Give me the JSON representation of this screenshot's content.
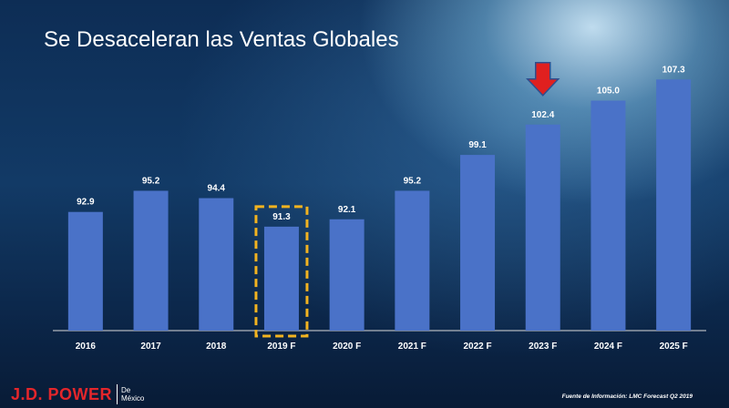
{
  "slide": {
    "title": "Se Desaceleran las Ventas Globales"
  },
  "chart_data": {
    "type": "bar",
    "title": "Se Desaceleran las Ventas Globales",
    "xlabel": "",
    "ylabel": "",
    "categories": [
      "2016",
      "2017",
      "2018",
      "2019 F",
      "2020 F",
      "2021 F",
      "2022 F",
      "2023 F",
      "2024 F",
      "2025 F"
    ],
    "values": [
      92.9,
      95.2,
      94.4,
      91.3,
      92.1,
      95.2,
      99.1,
      102.4,
      105.0,
      107.3
    ],
    "value_labels": [
      "92.9",
      "95.2",
      "94.4",
      "91.3",
      "92.1",
      "95.2",
      "99.1",
      "102.4",
      "105.0",
      "107.3"
    ],
    "ylim": [
      80,
      110
    ],
    "grid": false,
    "legend": "none",
    "highlighted_category": "2019 F",
    "arrow_category": "2023 F"
  },
  "colors": {
    "bar": "#4a72c8",
    "highlight_box": "#f2b320",
    "arrow": "#e0201f",
    "arrow_outline": "#2e4f8f",
    "logo": "#e4262b"
  },
  "footer": {
    "logo_text": "J.D. POWER",
    "logo_sub_line1": "De",
    "logo_sub_line2": "México",
    "source_text": "Fuente de Información: LMC Forecast Q2 2019"
  }
}
